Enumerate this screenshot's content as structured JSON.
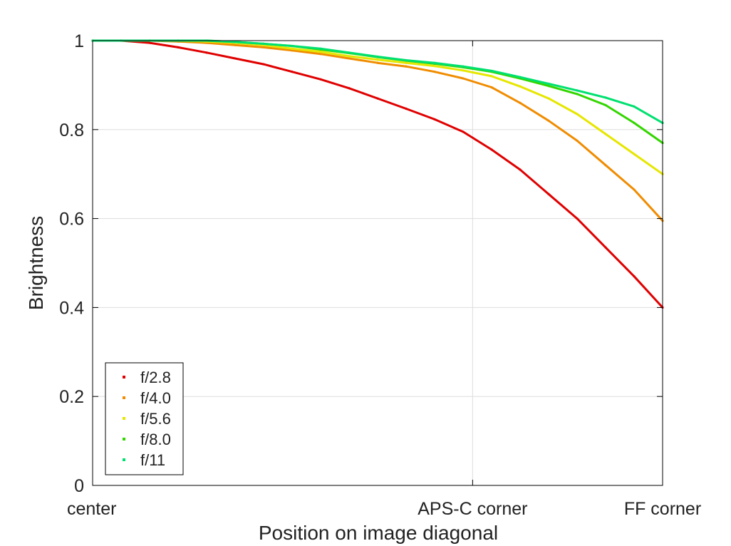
{
  "chart_data": {
    "type": "line",
    "title": "",
    "xlabel": "Position on image diagonal",
    "ylabel": "Brightness",
    "xlim": [
      0,
      1
    ],
    "ylim": [
      0,
      1
    ],
    "grid": true,
    "legend_position": "bottom-left",
    "x_ticks": [
      {
        "value": 0,
        "label": "center"
      },
      {
        "value": 0.6667,
        "label": "APS-C corner"
      },
      {
        "value": 1,
        "label": "FF corner"
      }
    ],
    "y_ticks": [
      {
        "value": 0,
        "label": "0"
      },
      {
        "value": 0.2,
        "label": "0.2"
      },
      {
        "value": 0.4,
        "label": "0.4"
      },
      {
        "value": 0.6,
        "label": "0.6"
      },
      {
        "value": 0.8,
        "label": "0.8"
      },
      {
        "value": 1,
        "label": "1"
      }
    ],
    "x": [
      0,
      0.05,
      0.1,
      0.15,
      0.2,
      0.25,
      0.3,
      0.35,
      0.4,
      0.45,
      0.5,
      0.55,
      0.6,
      0.65,
      0.7,
      0.75,
      0.8,
      0.85,
      0.9,
      0.95,
      1
    ],
    "series": [
      {
        "name": "f/2.8",
        "color": "#e00000",
        "values": [
          1.0,
          1.0,
          0.995,
          0.985,
          0.973,
          0.96,
          0.947,
          0.93,
          0.913,
          0.893,
          0.87,
          0.847,
          0.823,
          0.795,
          0.755,
          0.71,
          0.655,
          0.6,
          0.535,
          0.47,
          0.4
        ]
      },
      {
        "name": "f/4.0",
        "color": "#f08c00",
        "values": [
          1.0,
          1.0,
          1.0,
          0.998,
          0.995,
          0.99,
          0.985,
          0.978,
          0.97,
          0.96,
          0.95,
          0.942,
          0.93,
          0.915,
          0.895,
          0.86,
          0.82,
          0.775,
          0.72,
          0.665,
          0.595
        ]
      },
      {
        "name": "f/5.6",
        "color": "#e6e600",
        "values": [
          1.0,
          1.0,
          1.0,
          1.0,
          0.998,
          0.995,
          0.99,
          0.982,
          0.975,
          0.965,
          0.957,
          0.95,
          0.943,
          0.933,
          0.92,
          0.897,
          0.87,
          0.835,
          0.79,
          0.745,
          0.7
        ]
      },
      {
        "name": "f/8.0",
        "color": "#33d600",
        "values": [
          1.0,
          1.0,
          1.0,
          1.0,
          1.0,
          0.997,
          0.993,
          0.988,
          0.98,
          0.972,
          0.963,
          0.955,
          0.948,
          0.94,
          0.93,
          0.915,
          0.898,
          0.88,
          0.855,
          0.815,
          0.77
        ]
      },
      {
        "name": "f/11",
        "color": "#00e070",
        "values": [
          1.0,
          1.0,
          1.0,
          1.0,
          1.0,
          0.997,
          0.993,
          0.988,
          0.982,
          0.973,
          0.964,
          0.956,
          0.95,
          0.942,
          0.932,
          0.918,
          0.903,
          0.888,
          0.872,
          0.852,
          0.815
        ]
      }
    ]
  }
}
